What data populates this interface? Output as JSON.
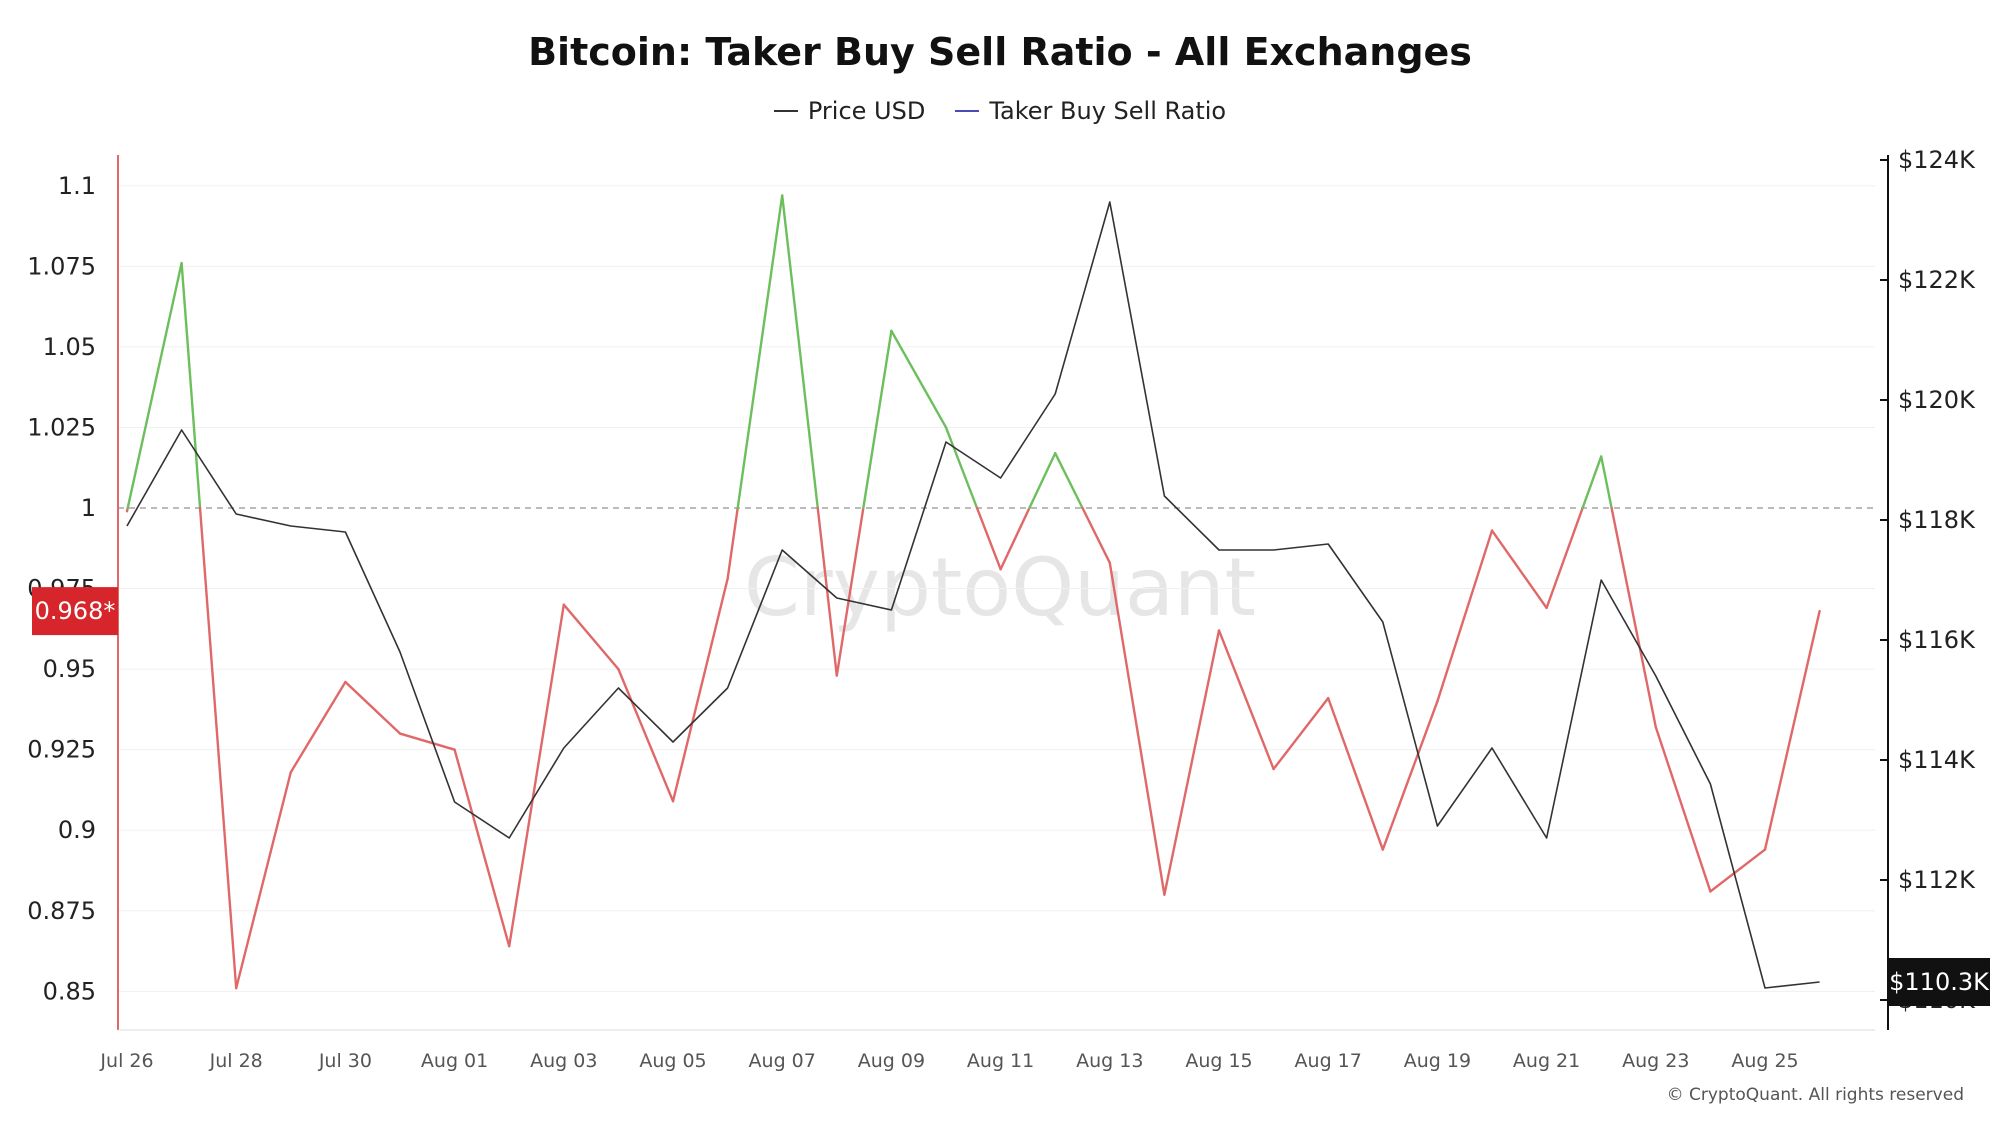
{
  "title": "Bitcoin: Taker Buy Sell Ratio - All Exchanges",
  "legend": [
    {
      "name": "Price USD",
      "color": "#333333"
    },
    {
      "name": "Taker Buy Sell Ratio",
      "color": "#4a4ab8"
    }
  ],
  "watermark": "CryptoQuant",
  "copyright": "© CryptoQuant. All rights reserved",
  "colors": {
    "above": "#6cbf5c",
    "below": "#e06868",
    "price": "#333333",
    "current_ratio_tag": "#d6262b",
    "current_price_tag": "#111111",
    "left_axis": "#e06868",
    "right_axis": "#111111"
  },
  "current_ratio_label": "0.968*",
  "current_price_label": "$110.3K",
  "chart_data": {
    "type": "line",
    "x": [
      "Jul 26",
      "Jul 27",
      "Jul 28",
      "Jul 29",
      "Jul 30",
      "Jul 31",
      "Aug 01",
      "Aug 02",
      "Aug 03",
      "Aug 04",
      "Aug 05",
      "Aug 06",
      "Aug 07",
      "Aug 08",
      "Aug 09",
      "Aug 10",
      "Aug 11",
      "Aug 12",
      "Aug 13",
      "Aug 14",
      "Aug 15",
      "Aug 16",
      "Aug 17",
      "Aug 18",
      "Aug 19",
      "Aug 20",
      "Aug 21",
      "Aug 22",
      "Aug 23",
      "Aug 24",
      "Aug 25",
      "Aug 26"
    ],
    "x_tick_labels": [
      "Jul 26",
      "Jul 28",
      "Jul 30",
      "Aug 01",
      "Aug 03",
      "Aug 05",
      "Aug 07",
      "Aug 09",
      "Aug 11",
      "Aug 13",
      "Aug 15",
      "Aug 17",
      "Aug 19",
      "Aug 21",
      "Aug 23",
      "Aug 25"
    ],
    "series": [
      {
        "name": "Taker Buy Sell Ratio",
        "axis": "left",
        "threshold": 1,
        "values": [
          0.999,
          1.076,
          0.851,
          0.918,
          0.946,
          0.93,
          0.925,
          0.864,
          0.97,
          0.95,
          0.909,
          0.978,
          1.097,
          0.948,
          1.055,
          1.025,
          0.981,
          1.017,
          0.983,
          0.88,
          0.962,
          0.919,
          0.941,
          0.894,
          0.94,
          0.993,
          0.969,
          1.016,
          0.932,
          0.881,
          0.894,
          0.968
        ]
      },
      {
        "name": "Price USD",
        "axis": "right",
        "values": [
          117900,
          119500,
          118100,
          117900,
          117800,
          115800,
          113300,
          112700,
          114200,
          115200,
          114300,
          115200,
          117500,
          116700,
          116500,
          119300,
          118700,
          120100,
          123300,
          118400,
          117500,
          117500,
          117600,
          116300,
          112900,
          114200,
          112700,
          117000,
          115400,
          113600,
          110200,
          110300
        ]
      }
    ],
    "left_ticks": [
      "1.1",
      "1.075",
      "1.05",
      "1.025",
      "1",
      "0.975",
      "0.95",
      "0.925",
      "0.9",
      "0.875",
      "0.85"
    ],
    "right_ticks": [
      "$124K",
      "$122K",
      "$120K",
      "$118K",
      "$116K",
      "$114K",
      "$112K",
      "$110K"
    ],
    "ylim_left": [
      0.838,
      1.108
    ],
    "ylim_right": [
      109500,
      124000
    ],
    "reference_line": 1,
    "grid": true
  }
}
